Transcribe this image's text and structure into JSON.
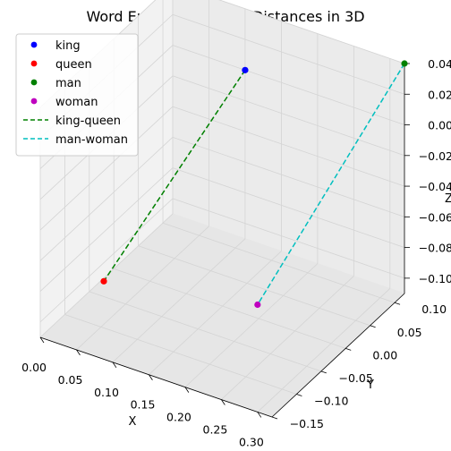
{
  "chart_data": {
    "type": "scatter",
    "title": "Word Embeddings and Distances in 3D",
    "xlabel": "X",
    "ylabel": "Y",
    "zlabel": "Z",
    "xlim": [
      0.0,
      0.32
    ],
    "ylim": [
      -0.15,
      0.12
    ],
    "zlim": [
      -0.11,
      0.04
    ],
    "xticks": [
      "0.00",
      "0.05",
      "0.10",
      "0.15",
      "0.20",
      "0.25",
      "0.30"
    ],
    "yticks": [
      "−0.15",
      "−0.10",
      "−0.05",
      "0.00",
      "0.05",
      "0.10"
    ],
    "zticks": [
      "−0.10",
      "−0.08",
      "−0.06",
      "−0.04",
      "−0.02",
      "0.00",
      "0.02",
      "0.04"
    ],
    "grid": true,
    "legend_position": "top-left",
    "points": [
      {
        "name": "king",
        "x": 0.1,
        "y": 0.12,
        "z": 0.0,
        "color": "#0000ff"
      },
      {
        "name": "queen",
        "x": 0.02,
        "y": -0.05,
        "z": -0.1,
        "color": "#ff0000"
      },
      {
        "name": "man",
        "x": 0.32,
        "y": 0.12,
        "z": 0.04,
        "color": "#008000"
      },
      {
        "name": "woman",
        "x": 0.3,
        "y": -0.15,
        "z": -0.04,
        "color": "#bf00bf"
      }
    ],
    "lines": [
      {
        "name": "king-queen",
        "from": "king",
        "to": "queen",
        "color": "#008000",
        "style": "dashed"
      },
      {
        "name": "man-woman",
        "from": "man",
        "to": "woman",
        "color": "#00bfbf",
        "style": "dashed"
      }
    ]
  }
}
